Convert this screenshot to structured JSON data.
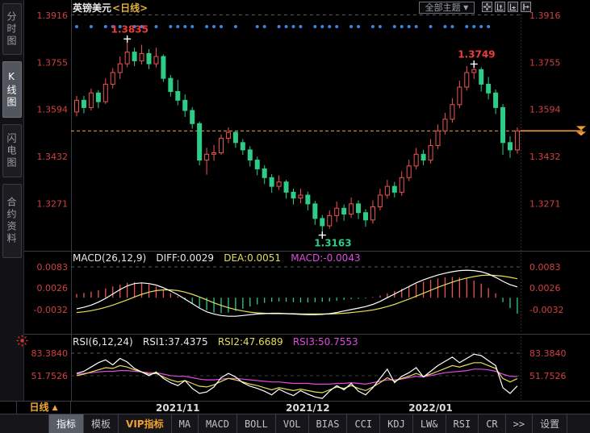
{
  "colors": {
    "up": "#ef5350",
    "down": "#2ecc87",
    "axis_label": "#d04040",
    "price_line": "#f59a3c",
    "dif_line": "#ffffff",
    "dea_line": "#e3df5a",
    "magenta": "#e04ae0",
    "signal_dot": "#3a85e0",
    "grid": "#565656",
    "frame": "#3a3a46",
    "annotation_high": "#ee3b3b",
    "annotation_low": "#2ecc87",
    "title_period": "#e0b040"
  },
  "sidebar": {
    "tabs": [
      {
        "label": "分时图",
        "key": "time-chart",
        "selected": false
      },
      {
        "label": "K线图",
        "key": "kline-chart",
        "selected": true
      },
      {
        "label": "闪电图",
        "key": "flash-chart",
        "selected": false
      },
      {
        "label": "合约资料",
        "key": "contract-info",
        "selected": false
      }
    ]
  },
  "header": {
    "symbol": "英镑美元",
    "period": "<日线>",
    "theme_dropdown": "全部主题",
    "caret": "▼",
    "toolbar_icons": [
      "crosshair-icon",
      "y-axis-scale-icon",
      "x-axis-scale-icon",
      "pan-right-icon"
    ]
  },
  "macd_panel": {
    "header": {
      "name": "MACD(26,12,9)",
      "diff": "DIFF:0.0029",
      "dea": "DEA:0.0051",
      "macd": "MACD:-0.0043"
    }
  },
  "rsi_panel": {
    "header": {
      "name": "RSI(6,12,24)",
      "rsi1": "RSI1:37.4375",
      "rsi2": "RSI2:47.6689",
      "rsi3": "RSI3:50.7553"
    }
  },
  "xaxis": {
    "period_label": "日线",
    "period_arrow": "▲"
  },
  "bottom_tabs": [
    {
      "label": "指标",
      "key": "indicator",
      "selected": true
    },
    {
      "label": "模板",
      "key": "template"
    },
    {
      "label": "VIP指标",
      "key": "vip-indicator",
      "accent": true
    },
    {
      "label": "MA",
      "key": "ma",
      "mono": true
    },
    {
      "label": "MACD",
      "key": "macd",
      "mono": true
    },
    {
      "label": "BOLL",
      "key": "boll",
      "mono": true
    },
    {
      "label": "VOL",
      "key": "vol",
      "mono": true
    },
    {
      "label": "BIAS",
      "key": "bias",
      "mono": true
    },
    {
      "label": "CCI",
      "key": "cci",
      "mono": true
    },
    {
      "label": "KDJ",
      "key": "kdj",
      "mono": true
    },
    {
      "label": "LW&",
      "key": "lw",
      "mono": true
    },
    {
      "label": "RSI",
      "key": "rsi",
      "mono": true
    },
    {
      "label": "CR",
      "key": "cr",
      "mono": true
    },
    {
      "label": ">>",
      "key": "more",
      "mono": true
    },
    {
      "label": "设置",
      "key": "settings"
    }
  ],
  "chart_data": [
    {
      "type": "candlestick",
      "title": "英镑美元 日线",
      "y_ticks": [
        "1.3916",
        "1.3755",
        "1.3594",
        "1.3432",
        "1.3271"
      ],
      "y_range": [
        1.3916,
        1.3271
      ],
      "current_price": 1.352,
      "months": [
        {
          "label": "2021/11",
          "index": 14
        },
        {
          "label": "2021/12",
          "index": 32
        },
        {
          "label": "2022/01",
          "index": 49
        }
      ],
      "annotations": [
        {
          "label": "1.3835",
          "index": 7,
          "price": 1.3835,
          "kind": "high"
        },
        {
          "label": "1.3749",
          "index": 55,
          "price": 1.3749,
          "kind": "high"
        },
        {
          "label": "1.3163",
          "index": 34,
          "price": 1.3163,
          "kind": "low"
        }
      ],
      "signal_dot_indices": [
        0,
        2,
        4,
        5,
        6,
        8,
        9,
        11,
        13,
        14,
        15,
        16,
        18,
        19,
        20,
        22,
        25,
        26,
        28,
        29,
        30,
        31,
        33,
        34,
        35,
        36,
        38,
        39,
        41,
        42,
        44,
        45,
        46,
        47,
        49,
        51,
        52,
        54,
        55,
        56,
        57
      ],
      "candles": [
        [
          1.3585,
          1.364,
          1.357,
          1.3625
        ],
        [
          1.3625,
          1.364,
          1.358,
          1.36
        ],
        [
          1.36,
          1.3665,
          1.359,
          1.365
        ],
        [
          1.365,
          1.366,
          1.3598,
          1.362
        ],
        [
          1.362,
          1.37,
          1.3612,
          1.368
        ],
        [
          1.368,
          1.3735,
          1.3665,
          1.372
        ],
        [
          1.372,
          1.3775,
          1.3698,
          1.375
        ],
        [
          1.375,
          1.3835,
          1.3738,
          1.379
        ],
        [
          1.379,
          1.3805,
          1.3742,
          1.376
        ],
        [
          1.376,
          1.3815,
          1.3748,
          1.3785
        ],
        [
          1.3785,
          1.38,
          1.3732,
          1.375
        ],
        [
          1.375,
          1.3805,
          1.3738,
          1.3775
        ],
        [
          1.3775,
          1.3782,
          1.3688,
          1.37
        ],
        [
          1.37,
          1.3712,
          1.3638,
          1.3655
        ],
        [
          1.3655,
          1.3695,
          1.3608,
          1.3625
        ],
        [
          1.3625,
          1.3645,
          1.3568,
          1.359
        ],
        [
          1.359,
          1.3602,
          1.3528,
          1.3545
        ],
        [
          1.3545,
          1.3552,
          1.3402,
          1.342
        ],
        [
          1.342,
          1.3462,
          1.337,
          1.344
        ],
        [
          1.344,
          1.3472,
          1.3418,
          1.3445
        ],
        [
          1.3445,
          1.3508,
          1.3438,
          1.3495
        ],
        [
          1.3495,
          1.3532,
          1.3478,
          1.3515
        ],
        [
          1.3515,
          1.3522,
          1.3462,
          1.348
        ],
        [
          1.348,
          1.3492,
          1.3438,
          1.3455
        ],
        [
          1.3455,
          1.3468,
          1.3398,
          1.342
        ],
        [
          1.342,
          1.3432,
          1.3368,
          1.339
        ],
        [
          1.339,
          1.3402,
          1.3338,
          1.336
        ],
        [
          1.336,
          1.3372,
          1.3308,
          1.333
        ],
        [
          1.333,
          1.3368,
          1.3318,
          1.3345
        ],
        [
          1.3345,
          1.3352,
          1.3288,
          1.331
        ],
        [
          1.331,
          1.3322,
          1.3268,
          1.329
        ],
        [
          1.329,
          1.3322,
          1.3272,
          1.33
        ],
        [
          1.33,
          1.3312,
          1.3248,
          1.327
        ],
        [
          1.327,
          1.328,
          1.3198,
          1.322
        ],
        [
          1.322,
          1.3232,
          1.3163,
          1.3195
        ],
        [
          1.3195,
          1.3248,
          1.3185,
          1.323
        ],
        [
          1.323,
          1.3278,
          1.3208,
          1.3255
        ],
        [
          1.3255,
          1.3268,
          1.3212,
          1.3235
        ],
        [
          1.3235,
          1.3292,
          1.3222,
          1.327
        ],
        [
          1.327,
          1.3282,
          1.3218,
          1.324
        ],
        [
          1.324,
          1.3252,
          1.3192,
          1.3215
        ],
        [
          1.3215,
          1.3282,
          1.3202,
          1.326
        ],
        [
          1.326,
          1.3322,
          1.3248,
          1.33
        ],
        [
          1.33,
          1.3352,
          1.3288,
          1.333
        ],
        [
          1.333,
          1.3345,
          1.3292,
          1.331
        ],
        [
          1.331,
          1.3382,
          1.3298,
          1.336
        ],
        [
          1.336,
          1.3422,
          1.3348,
          1.34
        ],
        [
          1.34,
          1.3462,
          1.3388,
          1.344
        ],
        [
          1.344,
          1.3455,
          1.3402,
          1.342
        ],
        [
          1.342,
          1.3492,
          1.3408,
          1.347
        ],
        [
          1.347,
          1.3542,
          1.3458,
          1.352
        ],
        [
          1.352,
          1.3582,
          1.3508,
          1.356
        ],
        [
          1.356,
          1.3632,
          1.3548,
          1.361
        ],
        [
          1.361,
          1.3692,
          1.3598,
          1.367
        ],
        [
          1.367,
          1.3742,
          1.3658,
          1.372
        ],
        [
          1.372,
          1.3749,
          1.3698,
          1.373
        ],
        [
          1.373,
          1.3738,
          1.3655,
          1.368
        ],
        [
          1.368,
          1.3705,
          1.3628,
          1.365
        ],
        [
          1.365,
          1.3662,
          1.3578,
          1.36
        ],
        [
          1.36,
          1.3612,
          1.3438,
          1.348
        ],
        [
          1.348,
          1.3502,
          1.3428,
          1.3455
        ],
        [
          1.3455,
          1.3532,
          1.3442,
          1.352
        ]
      ]
    },
    {
      "type": "macd",
      "y_ticks": [
        "0.0083",
        "0.0026",
        "-0.0032"
      ],
      "hist": [
        0.001,
        0.0013,
        0.0016,
        0.002,
        0.0025,
        0.003,
        0.0035,
        0.004,
        0.0042,
        0.004,
        0.0036,
        0.003,
        0.0022,
        0.0012,
        0.0004,
        -0.0006,
        -0.0016,
        -0.0026,
        -0.0034,
        -0.004,
        -0.0042,
        -0.004,
        -0.0036,
        -0.003,
        -0.0024,
        -0.0018,
        -0.0014,
        -0.0011,
        -0.001,
        -0.0011,
        -0.0012,
        -0.0013,
        -0.0013,
        -0.0012,
        -0.0011,
        -0.001,
        -0.0008,
        -0.0006,
        -0.0004,
        -0.0003,
        -0.0002,
        0.0002,
        0.0006,
        0.0012,
        0.0018,
        0.0024,
        0.003,
        0.0037,
        0.0043,
        0.0048,
        0.0052,
        0.0055,
        0.0056,
        0.0055,
        0.0052,
        0.0046,
        0.0038,
        0.0026,
        0.0012,
        -0.0012,
        -0.0028,
        -0.0043
      ],
      "dif": [
        -0.003,
        -0.0026,
        -0.002,
        -0.0012,
        -0.0002,
        0.001,
        0.0022,
        0.0032,
        0.0038,
        0.004,
        0.0038,
        0.0034,
        0.0027,
        0.0018,
        0.0008,
        -0.0004,
        -0.0016,
        -0.0028,
        -0.0038,
        -0.0044,
        -0.0048,
        -0.005,
        -0.005,
        -0.0048,
        -0.0046,
        -0.0044,
        -0.0043,
        -0.0042,
        -0.0042,
        -0.0043,
        -0.0044,
        -0.0045,
        -0.0046,
        -0.0046,
        -0.0045,
        -0.0043,
        -0.004,
        -0.0036,
        -0.0032,
        -0.0028,
        -0.0024,
        -0.0018,
        -0.001,
        0.0,
        0.001,
        0.002,
        0.003,
        0.004,
        0.0048,
        0.0055,
        0.0061,
        0.0066,
        0.007,
        0.0073,
        0.0074,
        0.0073,
        0.007,
        0.0064,
        0.0055,
        0.0044,
        0.0035,
        0.0029
      ],
      "dea": [
        -0.004,
        -0.0038,
        -0.0035,
        -0.0031,
        -0.0026,
        -0.002,
        -0.0013,
        -0.0006,
        0.0002,
        0.0009,
        0.0015,
        0.0019,
        0.0021,
        0.0021,
        0.0019,
        0.0015,
        0.0009,
        0.0002,
        -0.0006,
        -0.0014,
        -0.0021,
        -0.0027,
        -0.0032,
        -0.0036,
        -0.0039,
        -0.0041,
        -0.0042,
        -0.0043,
        -0.0043,
        -0.0043,
        -0.0043,
        -0.0044,
        -0.0044,
        -0.0044,
        -0.0044,
        -0.0044,
        -0.0043,
        -0.0042,
        -0.004,
        -0.0038,
        -0.0036,
        -0.0033,
        -0.0029,
        -0.0024,
        -0.0018,
        -0.0011,
        -0.0004,
        0.0004,
        0.0012,
        0.002,
        0.0028,
        0.0035,
        0.0042,
        0.0048,
        0.0053,
        0.0057,
        0.006,
        0.0061,
        0.006,
        0.0058,
        0.0055,
        0.0051
      ]
    },
    {
      "type": "line",
      "name": "RSI",
      "y_ticks": [
        "83.3840",
        "51.7526"
      ],
      "series": [
        {
          "name": "RSI1",
          "values": [
            55,
            58,
            64,
            70,
            74,
            67,
            76,
            71,
            62,
            57,
            52,
            57,
            48,
            42,
            38,
            45,
            34,
            27,
            29,
            36,
            49,
            55,
            50,
            42,
            37,
            34,
            30,
            25,
            33,
            28,
            24,
            31,
            26,
            22,
            20,
            30,
            38,
            32,
            41,
            30,
            25,
            35,
            48,
            61,
            42,
            51,
            56,
            63,
            50,
            58,
            66,
            72,
            78,
            70,
            76,
            82,
            80,
            73,
            66,
            35,
            27,
            37.4375
          ]
        },
        {
          "name": "RSI2",
          "values": [
            52,
            54,
            57,
            60,
            63,
            62,
            66,
            64,
            60,
            57,
            54,
            55,
            50,
            46,
            43,
            45,
            41,
            37,
            36,
            39,
            44,
            48,
            46,
            43,
            40,
            38,
            35,
            32,
            35,
            33,
            31,
            33,
            31,
            29,
            28,
            32,
            36,
            34,
            38,
            34,
            31,
            36,
            42,
            49,
            44,
            48,
            51,
            55,
            51,
            54,
            58,
            62,
            66,
            64,
            67,
            70,
            70,
            66,
            62,
            48,
            43,
            47.6689
          ]
        },
        {
          "name": "RSI3",
          "values": [
            54,
            55,
            56,
            57,
            58,
            58,
            59,
            59,
            58,
            57,
            56,
            56,
            54,
            52,
            51,
            51,
            49,
            47,
            46,
            46,
            47,
            48,
            48,
            47,
            46,
            45,
            44,
            43,
            43,
            42,
            41,
            41,
            41,
            40,
            40,
            40,
            41,
            41,
            42,
            41,
            40,
            42,
            44,
            46,
            46,
            47,
            49,
            51,
            50,
            52,
            54,
            56,
            57,
            58,
            59,
            61,
            61,
            60,
            58,
            54,
            51,
            50.7553
          ]
        }
      ]
    }
  ]
}
